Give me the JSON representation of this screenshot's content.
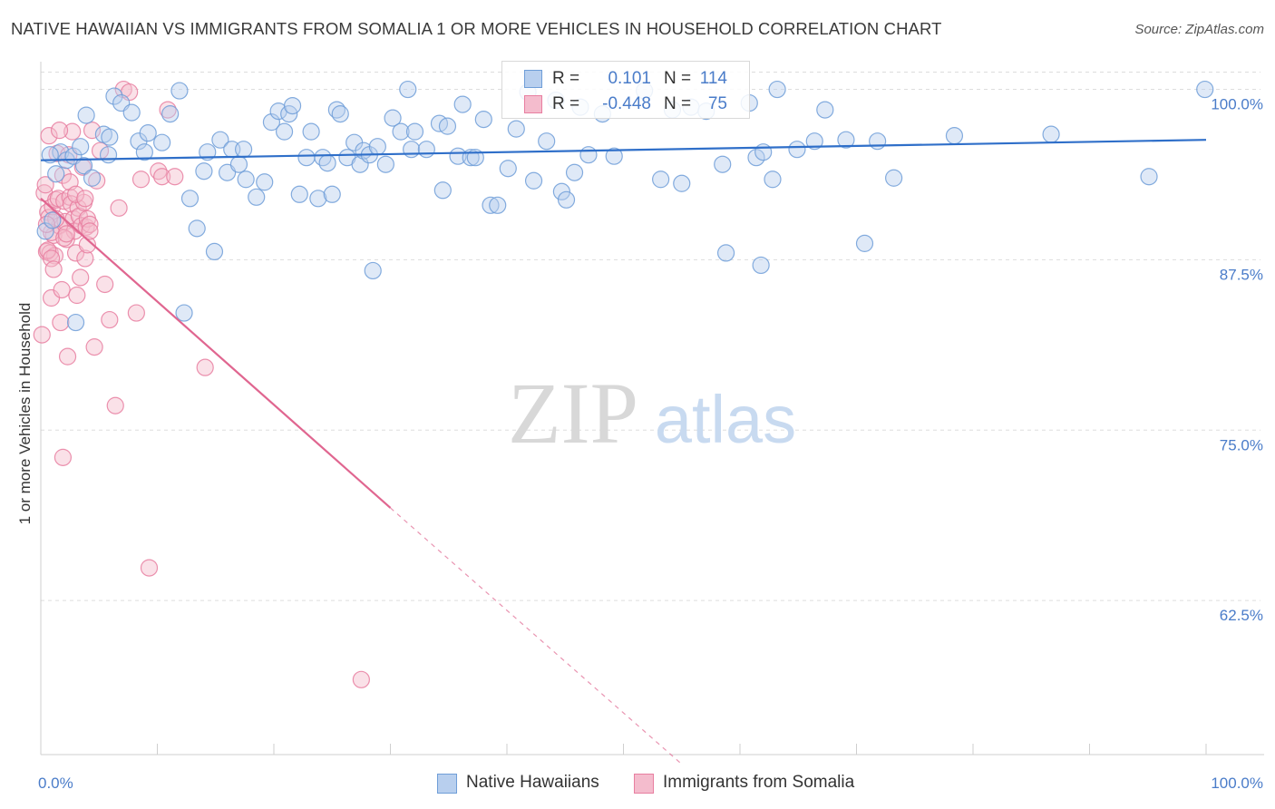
{
  "title": "NATIVE HAWAIIAN VS IMMIGRANTS FROM SOMALIA 1 OR MORE VEHICLES IN HOUSEHOLD CORRELATION CHART",
  "source": "Source: ZipAtlas.com",
  "watermark": {
    "zip": "ZIP",
    "atlas": "atlas"
  },
  "legend": {
    "series1": {
      "r_label": "R =",
      "r_value": "0.101",
      "n_label": "N =",
      "n_value": "114"
    },
    "series2": {
      "r_label": "R =",
      "r_value": "-0.448",
      "n_label": "N =",
      "n_value": "75"
    }
  },
  "bottom_legend": {
    "series1": "Native Hawaiians",
    "series2": "Immigrants from Somalia"
  },
  "chart_data": {
    "type": "scatter",
    "title": "NATIVE HAWAIIAN VS IMMIGRANTS FROM SOMALIA 1 OR MORE VEHICLES IN HOUSEHOLD CORRELATION CHART",
    "xlabel": "",
    "ylabel": "1 or more Vehicles in Household",
    "xlim": [
      0,
      100
    ],
    "ylim": [
      51.2,
      101.9
    ],
    "x_tick_labels": [
      "0.0%",
      "100.0%"
    ],
    "y_ticks": [
      62.5,
      75.0,
      87.5,
      100.0
    ],
    "y_tick_labels": [
      "62.5%",
      "75.0%",
      "87.5%",
      "100.0%"
    ],
    "grid": true,
    "colors": {
      "series1": "#6f9ed8",
      "series1_fill": "#b8cfee",
      "series1_line": "#2f6fc9",
      "series2": "#e87ea0",
      "series2_fill": "#f4bccd",
      "series2_line": "#e06690",
      "axis_text": "#4a7cc9"
    },
    "series": [
      {
        "name": "Native Hawaiians",
        "trend": {
          "x": [
            0,
            100
          ],
          "y": [
            94.8,
            96.3
          ]
        },
        "points": [
          [
            0.4,
            89.6
          ],
          [
            1.0,
            90.4
          ],
          [
            1.3,
            93.8
          ],
          [
            1.7,
            95.4
          ],
          [
            2.2,
            94.8
          ],
          [
            2.8,
            95.1
          ],
          [
            3.4,
            95.8
          ],
          [
            3.7,
            94.4
          ],
          [
            3.9,
            98.1
          ],
          [
            4.4,
            93.5
          ],
          [
            5.4,
            96.7
          ],
          [
            5.8,
            95.2
          ],
          [
            6.3,
            99.5
          ],
          [
            6.9,
            99.0
          ],
          [
            7.8,
            98.3
          ],
          [
            8.4,
            96.2
          ],
          [
            8.9,
            95.4
          ],
          [
            9.2,
            96.8
          ],
          [
            10.4,
            96.1
          ],
          [
            11.1,
            98.2
          ],
          [
            11.9,
            99.9
          ],
          [
            12.8,
            92.0
          ],
          [
            13.4,
            89.8
          ],
          [
            14.0,
            94.0
          ],
          [
            14.3,
            95.4
          ],
          [
            14.9,
            88.1
          ],
          [
            15.4,
            96.3
          ],
          [
            16.0,
            93.9
          ],
          [
            16.4,
            95.6
          ],
          [
            17.0,
            94.5
          ],
          [
            17.4,
            95.6
          ],
          [
            17.6,
            93.4
          ],
          [
            18.5,
            92.1
          ],
          [
            19.2,
            93.2
          ],
          [
            19.8,
            97.6
          ],
          [
            20.4,
            98.4
          ],
          [
            20.9,
            96.9
          ],
          [
            21.3,
            98.2
          ],
          [
            21.6,
            98.8
          ],
          [
            22.2,
            92.3
          ],
          [
            22.8,
            95.0
          ],
          [
            23.2,
            96.9
          ],
          [
            23.8,
            92.0
          ],
          [
            24.2,
            95.0
          ],
          [
            24.6,
            94.6
          ],
          [
            25.0,
            92.3
          ],
          [
            25.4,
            98.5
          ],
          [
            25.7,
            98.2
          ],
          [
            26.3,
            95.0
          ],
          [
            26.9,
            96.1
          ],
          [
            27.4,
            94.5
          ],
          [
            27.7,
            95.5
          ],
          [
            28.2,
            95.2
          ],
          [
            28.5,
            86.7
          ],
          [
            28.9,
            95.8
          ],
          [
            29.6,
            94.5
          ],
          [
            30.2,
            97.9
          ],
          [
            30.9,
            96.9
          ],
          [
            31.5,
            100.0
          ],
          [
            31.8,
            95.6
          ],
          [
            32.1,
            96.9
          ],
          [
            33.1,
            95.6
          ],
          [
            34.2,
            97.5
          ],
          [
            34.5,
            92.6
          ],
          [
            34.9,
            97.3
          ],
          [
            35.8,
            95.1
          ],
          [
            36.2,
            98.9
          ],
          [
            36.9,
            95.0
          ],
          [
            37.3,
            95.0
          ],
          [
            38.0,
            97.8
          ],
          [
            38.6,
            91.5
          ],
          [
            39.2,
            91.5
          ],
          [
            40.1,
            94.2
          ],
          [
            40.8,
            97.1
          ],
          [
            41.8,
            99.8
          ],
          [
            42.3,
            93.3
          ],
          [
            43.4,
            96.2
          ],
          [
            44.2,
            99.2
          ],
          [
            44.7,
            92.5
          ],
          [
            45.1,
            91.9
          ],
          [
            45.8,
            93.9
          ],
          [
            46.3,
            98.7
          ],
          [
            47.0,
            95.2
          ],
          [
            48.2,
            98.2
          ],
          [
            49.2,
            95.1
          ],
          [
            51.8,
            99.9
          ],
          [
            53.2,
            93.4
          ],
          [
            54.2,
            98.5
          ],
          [
            55.0,
            93.1
          ],
          [
            55.8,
            98.7
          ],
          [
            57.1,
            98.4
          ],
          [
            58.5,
            94.5
          ],
          [
            58.8,
            88.0
          ],
          [
            60.8,
            99.0
          ],
          [
            61.4,
            95.0
          ],
          [
            61.8,
            87.1
          ],
          [
            62.0,
            95.4
          ],
          [
            62.8,
            93.4
          ],
          [
            63.2,
            100.0
          ],
          [
            64.9,
            95.6
          ],
          [
            66.4,
            96.2
          ],
          [
            67.3,
            98.5
          ],
          [
            69.1,
            96.3
          ],
          [
            70.7,
            88.7
          ],
          [
            71.8,
            96.2
          ],
          [
            73.2,
            93.5
          ],
          [
            78.4,
            96.6
          ],
          [
            86.7,
            96.7
          ],
          [
            95.1,
            93.6
          ],
          [
            99.9,
            100.0
          ],
          [
            0.8,
            95.2
          ],
          [
            3.0,
            82.9
          ],
          [
            12.3,
            83.6
          ],
          [
            5.9,
            96.5
          ]
        ]
      },
      {
        "name": "Immigrants from Somalia",
        "trend": {
          "x": [
            0,
            30
          ],
          "y": [
            92.0,
            69.3
          ]
        },
        "trend_dashed": {
          "x": [
            30,
            55
          ],
          "y": [
            69.3,
            50.5
          ]
        },
        "points": [
          [
            0.1,
            82.0
          ],
          [
            0.3,
            92.4
          ],
          [
            0.5,
            88.1
          ],
          [
            0.6,
            91.0
          ],
          [
            0.7,
            90.6
          ],
          [
            0.8,
            88.0
          ],
          [
            0.9,
            84.7
          ],
          [
            1.0,
            91.4
          ],
          [
            1.1,
            89.3
          ],
          [
            1.2,
            87.8
          ],
          [
            1.3,
            91.9
          ],
          [
            1.4,
            95.3
          ],
          [
            1.5,
            92.0
          ],
          [
            1.6,
            90.0
          ],
          [
            1.7,
            82.9
          ],
          [
            1.8,
            85.3
          ],
          [
            1.9,
            93.7
          ],
          [
            2.0,
            91.8
          ],
          [
            2.1,
            90.3
          ],
          [
            2.2,
            89.0
          ],
          [
            2.3,
            80.4
          ],
          [
            2.4,
            95.2
          ],
          [
            2.5,
            92.1
          ],
          [
            2.6,
            91.6
          ],
          [
            2.7,
            96.9
          ],
          [
            2.8,
            90.5
          ],
          [
            2.9,
            89.6
          ],
          [
            3.0,
            88.0
          ],
          [
            3.1,
            84.9
          ],
          [
            3.2,
            91.3
          ],
          [
            3.3,
            90.7
          ],
          [
            3.4,
            86.2
          ],
          [
            3.5,
            90.0
          ],
          [
            3.6,
            94.3
          ],
          [
            3.7,
            91.7
          ],
          [
            3.8,
            87.6
          ],
          [
            3.9,
            89.9
          ],
          [
            4.0,
            90.5
          ],
          [
            4.2,
            90.1
          ],
          [
            4.4,
            97.0
          ],
          [
            4.6,
            81.1
          ],
          [
            4.8,
            93.3
          ],
          [
            5.1,
            95.5
          ],
          [
            5.5,
            85.7
          ],
          [
            5.9,
            83.1
          ],
          [
            6.4,
            76.8
          ],
          [
            6.7,
            91.3
          ],
          [
            7.1,
            100.0
          ],
          [
            7.6,
            99.8
          ],
          [
            8.2,
            83.6
          ],
          [
            8.6,
            93.4
          ],
          [
            9.3,
            64.9
          ],
          [
            10.1,
            94.0
          ],
          [
            10.4,
            93.6
          ],
          [
            10.9,
            98.5
          ],
          [
            11.5,
            93.6
          ],
          [
            14.1,
            79.6
          ],
          [
            27.5,
            56.7
          ],
          [
            1.9,
            73.0
          ],
          [
            0.6,
            88.2
          ],
          [
            0.9,
            89.5
          ],
          [
            1.3,
            90.5
          ],
          [
            2.0,
            89.1
          ],
          [
            2.5,
            93.2
          ],
          [
            0.7,
            96.6
          ],
          [
            3.0,
            92.3
          ],
          [
            0.4,
            93.0
          ],
          [
            1.6,
            97.0
          ],
          [
            3.8,
            92.0
          ],
          [
            0.9,
            87.6
          ],
          [
            2.2,
            89.4
          ],
          [
            1.1,
            86.8
          ],
          [
            0.5,
            90.1
          ],
          [
            4.0,
            88.6
          ],
          [
            4.2,
            89.6
          ]
        ]
      }
    ]
  }
}
